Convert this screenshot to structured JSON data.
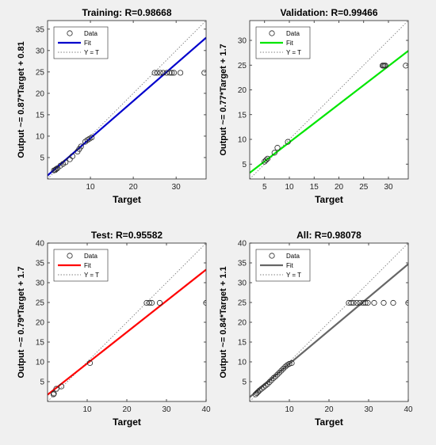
{
  "figure": {
    "background": "#f0f0f0",
    "axes_color": "#ffffff",
    "tick_color": "#262626",
    "ideal_color": "#7f7f7f",
    "marker_color": "#262626"
  },
  "chart_data": [
    {
      "type": "scatter",
      "title": "Training: R=0.98668",
      "xlabel": "Target",
      "ylabel": "Output ~= 0.87*Target + 0.81",
      "xlim": [
        0,
        37
      ],
      "ylim": [
        0,
        37
      ],
      "xticks": [
        10,
        20,
        30
      ],
      "yticks": [
        5,
        10,
        15,
        20,
        25,
        30,
        35
      ],
      "legend": {
        "placement": "top-left",
        "entries": [
          "Data",
          "Fit",
          "Y = T"
        ]
      },
      "fit_color": "#0000cc",
      "fit": {
        "slope": 0.87,
        "intercept": 0.81
      },
      "points": [
        [
          1.5,
          2
        ],
        [
          1.8,
          2.1
        ],
        [
          2,
          2.3
        ],
        [
          2.3,
          2.5
        ],
        [
          3,
          3.1
        ],
        [
          3.6,
          3.5
        ],
        [
          4.2,
          3.9
        ],
        [
          5.2,
          4.6
        ],
        [
          5.8,
          5.3
        ],
        [
          7,
          6.4
        ],
        [
          7.4,
          7
        ],
        [
          7.8,
          7.6
        ],
        [
          8.8,
          8.7
        ],
        [
          9.3,
          9.1
        ],
        [
          9.8,
          9.4
        ],
        [
          10.3,
          9.7
        ],
        [
          25,
          24.8
        ],
        [
          25.6,
          24.8
        ],
        [
          26.3,
          24.8
        ],
        [
          27,
          24.8
        ],
        [
          27.8,
          24.8
        ],
        [
          28.5,
          24.8
        ],
        [
          29,
          24.8
        ],
        [
          29.5,
          24.8
        ],
        [
          31,
          24.8
        ],
        [
          36.6,
          24.8
        ]
      ]
    },
    {
      "type": "scatter",
      "title": "Validation: R=0.99466",
      "xlabel": "Target",
      "ylabel": "Output ~= 0.77*Target + 1.7",
      "xlim": [
        2,
        34
      ],
      "ylim": [
        2,
        34
      ],
      "xticks": [
        5,
        10,
        15,
        20,
        25,
        30
      ],
      "yticks": [
        5,
        10,
        15,
        20,
        25,
        30
      ],
      "legend": {
        "placement": "top-left",
        "entries": [
          "Data",
          "Fit",
          "Y = T"
        ]
      },
      "fit_color": "#00e600",
      "fit": {
        "slope": 0.77,
        "intercept": 1.7
      },
      "points": [
        [
          5,
          5.5
        ],
        [
          5.3,
          5.8
        ],
        [
          5.6,
          6.1
        ],
        [
          7,
          7.3
        ],
        [
          7.6,
          8.3
        ],
        [
          9.7,
          9.5
        ],
        [
          28.8,
          24.9
        ],
        [
          29,
          24.9
        ],
        [
          29.2,
          24.9
        ],
        [
          29.4,
          24.9
        ],
        [
          33.5,
          24.9
        ]
      ]
    },
    {
      "type": "scatter",
      "title": "Test: R=0.95582",
      "xlabel": "Target",
      "ylabel": "Output ~= 0.79*Target + 1.7",
      "xlim": [
        0,
        40
      ],
      "ylim": [
        0,
        40
      ],
      "xticks": [
        10,
        20,
        30,
        40
      ],
      "yticks": [
        5,
        10,
        15,
        20,
        25,
        30,
        35,
        40
      ],
      "legend": {
        "placement": "top-left",
        "entries": [
          "Data",
          "Fit",
          "Y = T"
        ]
      },
      "fit_color": "#ff0000",
      "fit": {
        "slope": 0.79,
        "intercept": 1.7
      },
      "points": [
        [
          1.5,
          1.8
        ],
        [
          1.6,
          2
        ],
        [
          2.2,
          3.2
        ],
        [
          3.5,
          3.8
        ],
        [
          10.7,
          9.7
        ],
        [
          25,
          24.9
        ],
        [
          25.7,
          24.9
        ],
        [
          26.3,
          24.9
        ],
        [
          28.3,
          24.9
        ],
        [
          40,
          24.9
        ]
      ]
    },
    {
      "type": "scatter",
      "title": "All: R=0.98078",
      "xlabel": "Target",
      "ylabel": "Output ~= 0.84*Target + 1.1",
      "xlim": [
        0,
        40
      ],
      "ylim": [
        0,
        40
      ],
      "xticks": [
        10,
        20,
        30,
        40
      ],
      "yticks": [
        5,
        10,
        15,
        20,
        25,
        30,
        35,
        40
      ],
      "legend": {
        "placement": "top-left",
        "entries": [
          "Data",
          "Fit",
          "Y = T"
        ]
      },
      "fit_color": "#666666",
      "fit": {
        "slope": 0.84,
        "intercept": 1.1
      },
      "points": [
        [
          1.5,
          1.8
        ],
        [
          1.8,
          2.1
        ],
        [
          2.1,
          2.4
        ],
        [
          2.5,
          2.8
        ],
        [
          3,
          3.2
        ],
        [
          3.5,
          3.6
        ],
        [
          4,
          4
        ],
        [
          4.5,
          4.4
        ],
        [
          5,
          4.9
        ],
        [
          5.5,
          5.4
        ],
        [
          6,
          5.9
        ],
        [
          6.5,
          6.3
        ],
        [
          7,
          6.8
        ],
        [
          7.5,
          7.3
        ],
        [
          8,
          7.8
        ],
        [
          8.5,
          8.3
        ],
        [
          9,
          8.8
        ],
        [
          9.5,
          9.2
        ],
        [
          10,
          9.5
        ],
        [
          10.6,
          9.7
        ],
        [
          25,
          24.9
        ],
        [
          25.6,
          24.9
        ],
        [
          26.2,
          24.9
        ],
        [
          27,
          24.9
        ],
        [
          27.8,
          24.9
        ],
        [
          28.6,
          24.9
        ],
        [
          29.2,
          24.9
        ],
        [
          29.8,
          24.9
        ],
        [
          31.4,
          24.9
        ],
        [
          33.8,
          24.9
        ],
        [
          36.2,
          24.9
        ],
        [
          40,
          24.9
        ]
      ]
    }
  ]
}
